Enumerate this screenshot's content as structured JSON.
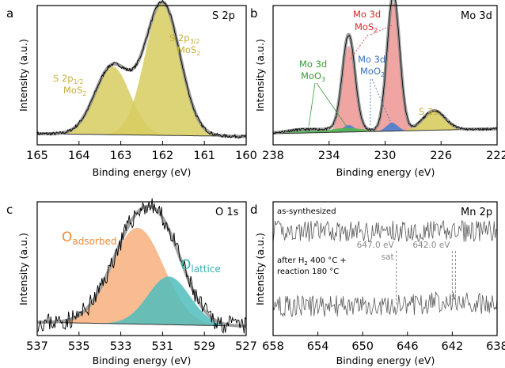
{
  "chart_data": [
    {
      "panel": "a",
      "title": "S 2p",
      "type": "line",
      "xlabel": "Binding energy (eV)",
      "ylabel": "Intensity (a.u.)",
      "xlim": [
        165,
        160
      ],
      "xticks": [
        165,
        164,
        163,
        162,
        161,
        160
      ],
      "ylim": [
        0,
        1
      ],
      "colors": {
        "component": "#d7cc5f",
        "envelope": "#8a8a8a",
        "raw": "#000000",
        "text": "#c5b03a"
      },
      "peaks": [
        {
          "label": "S 2p",
          "sub": "1/2",
          "species": "MoS",
          "species_sub": "2",
          "center": 163.2,
          "height": 0.49,
          "width": 0.42
        },
        {
          "label": "S 2p",
          "sub": "3/2",
          "species": "MoS",
          "species_sub": "2",
          "center": 162.0,
          "height": 0.95,
          "width": 0.42
        }
      ],
      "background": 0.06
    },
    {
      "panel": "b",
      "title": "Mo 3d",
      "type": "line",
      "xlabel": "Binding energy (eV)",
      "ylabel": "Intensity (a.u.)",
      "xlim": [
        238,
        222
      ],
      "xticks": [
        238,
        234,
        230,
        226,
        222
      ],
      "ylim": [
        0,
        1
      ],
      "colors": {
        "mos2": "#ec8f8c",
        "moo2": "#4a7fd0",
        "moo3": "#52b452",
        "s2s": "#d7cc5f",
        "envelope": "#8a8a8a",
        "raw": "#000000"
      },
      "annotations": {
        "mos2": {
          "line1": "Mo 3d",
          "line2": "MoS",
          "sub": "2",
          "color": "#d62728"
        },
        "moo2": {
          "line1": "Mo 3d",
          "line2": "MoO",
          "sub": "2",
          "color": "#3a6fc0"
        },
        "moo3": {
          "line1": "Mo 3d",
          "line2": "MoO",
          "sub": "3",
          "color": "#3a9a3a"
        },
        "s2s": {
          "line1": "S 2s",
          "color": "#c5b03a"
        }
      },
      "peaks": [
        {
          "species": "MoS2",
          "center": 229.4,
          "height": 0.92,
          "width": 0.45
        },
        {
          "species": "MoS2",
          "center": 232.6,
          "height": 0.62,
          "width": 0.45
        },
        {
          "species": "MoO2",
          "center": 229.5,
          "height": 0.06,
          "width": 0.4
        },
        {
          "species": "MoO2",
          "center": 232.6,
          "height": 0.05,
          "width": 0.4
        },
        {
          "species": "MoO3",
          "center": 232.8,
          "height": 0.03,
          "width": 1.2
        },
        {
          "species": "MoO3",
          "center": 235.9,
          "height": 0.025,
          "width": 1.2
        },
        {
          "species": "S2s",
          "center": 226.5,
          "height": 0.14,
          "width": 0.8
        }
      ]
    },
    {
      "panel": "c",
      "title": "O 1s",
      "type": "line",
      "xlabel": "Binding energy (eV)",
      "ylabel": "Intensity (a.u.)",
      "xlim": [
        537,
        527
      ],
      "xticks": [
        537,
        535,
        533,
        531,
        529,
        527
      ],
      "ylim": [
        0,
        1
      ],
      "colors": {
        "adsorbed": "#f8b07d",
        "lattice": "#4fbdbd",
        "envelope": "#9a9a9a",
        "raw": "#000000",
        "adsorbed_text": "#f08a3c",
        "lattice_text": "#3aaeb0"
      },
      "labels": {
        "adsorbed": {
          "main": "O",
          "sub": "adsorbed"
        },
        "lattice": {
          "main": "O",
          "sub": "lattice"
        }
      },
      "peaks": [
        {
          "species": "O adsorbed",
          "center": 532.2,
          "height": 0.72,
          "width": 1.25
        },
        {
          "species": "O lattice",
          "center": 530.7,
          "height": 0.36,
          "width": 1.0
        }
      ]
    },
    {
      "panel": "d",
      "title": "Mn 2p",
      "type": "line",
      "xlabel": "Binding energy (eV)",
      "ylabel": "Intensity (a.u.)",
      "xlim": [
        658,
        638
      ],
      "xticks": [
        658,
        654,
        650,
        646,
        642,
        638
      ],
      "ylim": [
        0,
        1
      ],
      "colors": {
        "raw": "#5a5a5a",
        "marker": "#8a8a8a",
        "marker_text": "#8a8a8a"
      },
      "spectra": [
        {
          "label": "as-synthesized",
          "level": 0.78
        },
        {
          "label": "after H2 400 °C + reaction 180 °C",
          "level": 0.22
        }
      ],
      "legend_lines": {
        "top": "as-synthesized",
        "bottom_line1_pre": "after H",
        "bottom_line1_sub": "2",
        "bottom_line1_post": " 400 °C +",
        "bottom_line2": "reaction 180 °C"
      },
      "markers": [
        {
          "position": 647.0,
          "label": "647.0 eV",
          "note": "sat"
        },
        {
          "position": 642.0,
          "label": "642.0 eV",
          "note": ""
        }
      ]
    }
  ]
}
